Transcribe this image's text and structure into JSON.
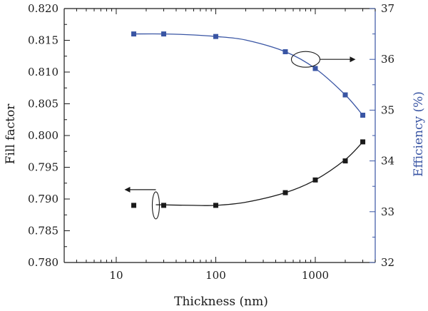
{
  "chart_data": {
    "type": "scatter",
    "x_scale": "log",
    "xlabel": "Thickness (nm)",
    "xlim": [
      3,
      4000
    ],
    "x_ticks": [
      10,
      100,
      1000
    ],
    "x_tick_labels": [
      "10",
      "100",
      "1000"
    ],
    "ylabel_left": "Fill factor",
    "ylim_left": [
      0.78,
      0.82
    ],
    "y_ticks_left": [
      "0.780",
      "0.785",
      "0.790",
      "0.795",
      "0.800",
      "0.805",
      "0.810",
      "0.815",
      "0.820"
    ],
    "ylabel_right": "Efficiency (%)",
    "ylim_right": [
      32,
      37
    ],
    "y_ticks_right": [
      "32",
      "33",
      "34",
      "35",
      "36",
      "37"
    ],
    "series": [
      {
        "name": "Fill factor",
        "axis": "left",
        "color": "#1a1a1a",
        "x": [
          15,
          30,
          100,
          500,
          1000,
          2000,
          3000
        ],
        "y": [
          0.789,
          0.789,
          0.789,
          0.791,
          0.793,
          0.796,
          0.799
        ],
        "fit_x": [
          25,
          60,
          100,
          200,
          500,
          1000,
          2000,
          3000
        ],
        "fit_y": [
          0.7891,
          0.789,
          0.789,
          0.7895,
          0.791,
          0.793,
          0.7962,
          0.799
        ]
      },
      {
        "name": "Efficiency",
        "axis": "right",
        "color": "#3955a4",
        "x": [
          15,
          30,
          100,
          500,
          1000,
          2000,
          3000
        ],
        "y": [
          36.5,
          36.5,
          36.45,
          36.15,
          35.82,
          35.3,
          34.9
        ],
        "fit_x": [
          15,
          30,
          60,
          100,
          200,
          500,
          1000,
          2000,
          3000
        ],
        "fit_y": [
          36.5,
          36.5,
          36.48,
          36.45,
          36.38,
          36.15,
          35.82,
          35.3,
          34.9
        ]
      }
    ],
    "annotations": [
      {
        "name": "fill-factor-axis-indicator",
        "points_to": "left",
        "anchor_x": 25,
        "anchor_y_left": 0.789
      },
      {
        "name": "efficiency-axis-indicator",
        "points_to": "right",
        "anchor_x": 800,
        "anchor_y_right": 36.0
      }
    ]
  }
}
